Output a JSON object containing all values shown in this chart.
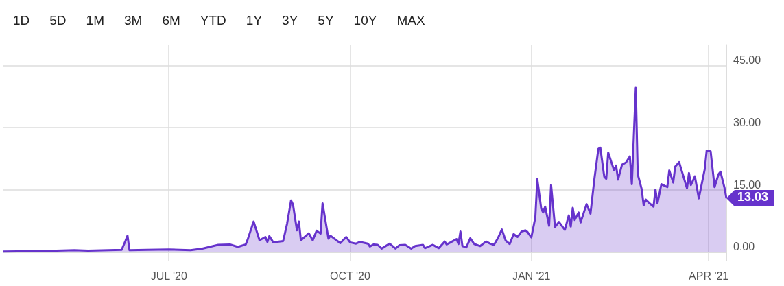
{
  "chart_data": {
    "type": "area",
    "x": [
      "2020-04-08",
      "2020-04-29",
      "2020-05-14",
      "2020-05-21",
      "2020-06-07",
      "2020-06-09",
      "2020-06-10",
      "2020-06-11",
      "2020-06-20",
      "2020-07-01",
      "2020-07-12",
      "2020-07-18",
      "2020-07-26",
      "2020-08-01",
      "2020-08-05",
      "2020-08-09",
      "2020-08-10",
      "2020-08-13",
      "2020-08-16",
      "2020-08-19",
      "2020-08-20",
      "2020-08-21",
      "2020-08-23",
      "2020-08-28",
      "2020-08-30",
      "2020-09-01",
      "2020-09-02",
      "2020-09-04",
      "2020-09-05",
      "2020-09-06",
      "2020-09-10",
      "2020-09-12",
      "2020-09-14",
      "2020-09-16",
      "2020-09-17",
      "2020-09-20",
      "2020-09-21",
      "2020-09-26",
      "2020-09-29",
      "2020-10-01",
      "2020-10-04",
      "2020-10-06",
      "2020-10-10",
      "2020-10-11",
      "2020-10-13",
      "2020-10-15",
      "2020-10-17",
      "2020-10-18",
      "2020-10-21",
      "2020-10-24",
      "2020-10-26",
      "2020-10-29",
      "2020-11-01",
      "2020-11-03",
      "2020-11-07",
      "2020-11-08",
      "2020-11-12",
      "2020-11-15",
      "2020-11-18",
      "2020-11-19",
      "2020-11-21",
      "2020-11-24",
      "2020-11-25",
      "2020-11-26",
      "2020-11-27",
      "2020-11-29",
      "2020-12-01",
      "2020-12-03",
      "2020-12-06",
      "2020-12-09",
      "2020-12-11",
      "2020-12-13",
      "2020-12-15",
      "2020-12-17",
      "2020-12-19",
      "2020-12-21",
      "2020-12-23",
      "2020-12-25",
      "2020-12-27",
      "2020-12-29",
      "2020-12-30",
      "2021-01-01",
      "2021-01-03",
      "2021-01-04",
      "2021-01-06",
      "2021-01-07",
      "2021-01-08",
      "2021-01-10",
      "2021-01-11",
      "2021-01-13",
      "2021-01-15",
      "2021-01-18",
      "2021-01-20",
      "2021-01-21",
      "2021-01-22",
      "2021-01-23",
      "2021-01-25",
      "2021-01-26",
      "2021-01-29",
      "2021-01-31",
      "2021-02-02",
      "2021-02-04",
      "2021-02-05",
      "2021-02-07",
      "2021-02-08",
      "2021-02-09",
      "2021-02-12",
      "2021-02-13",
      "2021-02-14",
      "2021-02-16",
      "2021-02-18",
      "2021-02-20",
      "2021-02-21",
      "2021-02-23",
      "2021-02-24",
      "2021-02-26",
      "2021-02-27",
      "2021-02-28",
      "2021-03-02",
      "2021-03-04",
      "2021-03-05",
      "2021-03-06",
      "2021-03-08",
      "2021-03-11",
      "2021-03-12",
      "2021-03-14",
      "2021-03-15",
      "2021-03-17",
      "2021-03-21",
      "2021-03-22",
      "2021-03-23",
      "2021-03-25",
      "2021-03-27",
      "2021-03-30",
      "2021-03-31",
      "2021-04-02",
      "2021-04-04",
      "2021-04-06",
      "2021-04-07",
      "2021-04-09",
      "2021-04-10"
    ],
    "series": [
      {
        "color": "#6633cc",
        "values": [
          0.2,
          0.3,
          0.5,
          0.4,
          0.6,
          2.8,
          4.0,
          0.5,
          0.6,
          0.7,
          0.5,
          0.9,
          1.8,
          1.9,
          1.3,
          1.9,
          3.1,
          7.4,
          2.9,
          3.7,
          2.5,
          3.9,
          2.4,
          2.7,
          6.9,
          12.5,
          11.5,
          5.3,
          7.4,
          2.9,
          4.6,
          2.9,
          5.2,
          4.5,
          11.8,
          3.3,
          4.0,
          2.2,
          3.7,
          2.4,
          2.1,
          2.5,
          2.1,
          1.4,
          1.9,
          1.8,
          0.9,
          1.2,
          2.1,
          0.9,
          1.7,
          1.8,
          0.9,
          1.5,
          1.8,
          1.0,
          1.8,
          1.0,
          2.6,
          1.9,
          2.4,
          3.2,
          2.0,
          5.0,
          1.5,
          1.2,
          3.4,
          2.0,
          1.5,
          2.6,
          2.1,
          1.8,
          3.4,
          5.5,
          2.8,
          2.0,
          4.4,
          3.7,
          5.0,
          5.3,
          4.9,
          3.6,
          8.4,
          17.6,
          10.5,
          9.6,
          11.0,
          6.4,
          16.2,
          6.1,
          7.3,
          5.4,
          8.9,
          6.2,
          10.7,
          7.8,
          9.6,
          7.2,
          11.6,
          9.3,
          17.7,
          24.9,
          25.2,
          18.2,
          17.7,
          24.0,
          19.7,
          20.9,
          17.5,
          21.1,
          21.6,
          23.1,
          16.4,
          39.6,
          18.8,
          15.2,
          11.3,
          12.7,
          11.8,
          11.0,
          15.1,
          11.8,
          16.4,
          15.7,
          19.7,
          16.8,
          20.6,
          21.7,
          15.4,
          19.1,
          16.2,
          18.3,
          13.0,
          20.0,
          24.5,
          24.3,
          15.7,
          18.8,
          19.4,
          15.6,
          13.03
        ]
      }
    ],
    "xlim": [
      "2020-04-08",
      "2021-04-10"
    ],
    "xticks": [
      {
        "value": "2020-07-01",
        "label": "JUL '20"
      },
      {
        "value": "2020-10-01",
        "label": "OCT '20"
      },
      {
        "value": "2021-01-01",
        "label": "JAN '21"
      },
      {
        "value": "2021-04-01",
        "label": "APR '21"
      }
    ],
    "ylim": [
      -2,
      50
    ],
    "yticks": [
      {
        "value": 0,
        "label": "0.00"
      },
      {
        "value": 15,
        "label": "15.00"
      },
      {
        "value": 30,
        "label": "30.00"
      },
      {
        "value": 45,
        "label": "45.00"
      }
    ],
    "grid": true,
    "marker": "none",
    "annotations": [
      "1D",
      "5D",
      "1M",
      "3M",
      "6M",
      "YTD",
      "1Y",
      "3Y",
      "5Y",
      "10Y",
      "MAX",
      {
        "text": "13.03",
        "x": "2021-04-10",
        "y": 13.03
      }
    ]
  }
}
